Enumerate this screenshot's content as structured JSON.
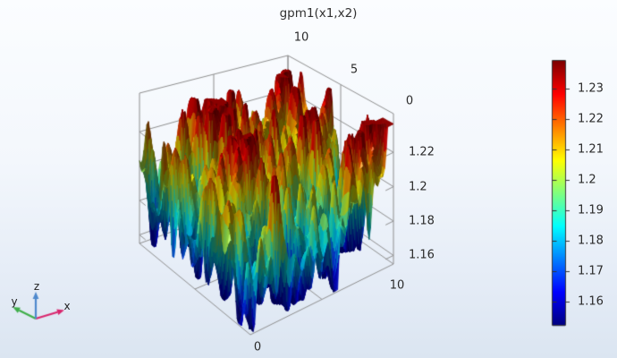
{
  "title": "gpm1(x1,x2)",
  "labels": {
    "x2_ticks": [
      "10",
      "5",
      "0"
    ],
    "x1_ticks": [
      "0",
      "10"
    ],
    "z_ticks": [
      "1.22",
      "1.2",
      "1.18",
      "1.16"
    ],
    "colorbar_ticks": [
      "1.23",
      "1.22",
      "1.21",
      "1.2",
      "1.19",
      "1.18",
      "1.17",
      "1.16"
    ],
    "triad": {
      "x": "x",
      "y": "y",
      "z": "z"
    }
  },
  "chart_data": {
    "type": "surface",
    "title": "gpm1(x1,x2)",
    "x1_range": [
      0,
      10
    ],
    "x2_range": [
      0,
      10
    ],
    "x1_tick_values": [
      0,
      10
    ],
    "x2_tick_values": [
      10,
      5,
      0
    ],
    "z_tick_values": [
      1.22,
      1.2,
      1.18,
      1.16
    ],
    "z_axis_range": [
      1.155,
      1.2425
    ],
    "color_range": [
      1.1525,
      1.239
    ],
    "colorbar_tick_values": [
      1.23,
      1.22,
      1.21,
      1.2,
      1.19,
      1.18,
      1.17,
      1.16
    ],
    "colormap": "rainbow",
    "legend_position": "right",
    "grid": true,
    "surface_mean": 1.196,
    "surface_std": 0.021,
    "surface_trend": 0.00095,
    "surface_clamp": [
      1.156,
      1.2365
    ],
    "grid_resolution": 100,
    "random_seed": 42,
    "fourier_modes": 72,
    "freq_sigma_low": 1.0,
    "freq_sigma_high": 4.3,
    "low_mode_fraction": 0.42
  },
  "style": {
    "wireframe_color": "#8e8e8e",
    "label_color": "#2b2b2b",
    "colorbar_border_color": "#3a3a3a",
    "triad_x_color": "#d9256d",
    "triad_y_color": "#3fae49",
    "triad_z_color": "#4d88cc"
  }
}
